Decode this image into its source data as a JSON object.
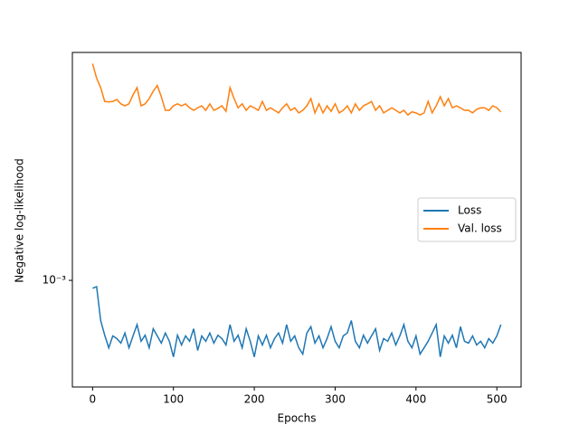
{
  "chart_data": {
    "type": "line",
    "xlabel": "Epochs",
    "ylabel": "Negative log-likelihood",
    "log_y": true,
    "legend": "center right",
    "xlim": [
      -25,
      530
    ],
    "xticks": [
      0,
      100,
      200,
      300,
      400,
      500
    ],
    "ylim": [
      0.0005,
      0.0044
    ],
    "yticks": [
      {
        "value": 0.001,
        "label": "10⁻³"
      }
    ],
    "x": [
      0,
      5,
      10,
      15,
      20,
      25,
      30,
      35,
      40,
      45,
      50,
      55,
      60,
      65,
      70,
      75,
      80,
      85,
      90,
      95,
      100,
      105,
      110,
      115,
      120,
      125,
      130,
      135,
      140,
      145,
      150,
      155,
      160,
      165,
      170,
      175,
      180,
      185,
      190,
      195,
      200,
      205,
      210,
      215,
      220,
      225,
      230,
      235,
      240,
      245,
      250,
      255,
      260,
      265,
      270,
      275,
      280,
      285,
      290,
      295,
      300,
      305,
      310,
      315,
      320,
      325,
      330,
      335,
      340,
      345,
      350,
      355,
      360,
      365,
      370,
      375,
      380,
      385,
      390,
      395,
      400,
      405,
      410,
      415,
      420,
      425,
      430,
      435,
      440,
      445,
      450,
      455,
      460,
      465,
      470,
      475,
      480,
      485,
      490,
      495,
      500,
      505
    ],
    "series": [
      {
        "name": "Loss",
        "color": "#1f77b4",
        "values": [
          0.00095,
          0.00096,
          0.00077,
          0.0007,
          0.000645,
          0.000697,
          0.000685,
          0.000665,
          0.00071,
          0.000645,
          0.000697,
          0.00075,
          0.000673,
          0.0007,
          0.000645,
          0.00073,
          0.000697,
          0.000665,
          0.00071,
          0.000673,
          0.000608,
          0.0007,
          0.000657,
          0.000697,
          0.000673,
          0.00073,
          0.000634,
          0.000697,
          0.000673,
          0.00071,
          0.000665,
          0.0007,
          0.000685,
          0.000657,
          0.00075,
          0.000673,
          0.0007,
          0.000645,
          0.00073,
          0.000673,
          0.000608,
          0.000697,
          0.000657,
          0.0007,
          0.000645,
          0.000685,
          0.00071,
          0.000665,
          0.00075,
          0.000673,
          0.000697,
          0.000645,
          0.000619,
          0.00071,
          0.00074,
          0.000665,
          0.000697,
          0.000645,
          0.000685,
          0.00074,
          0.000673,
          0.000645,
          0.000697,
          0.00071,
          0.00077,
          0.000673,
          0.000645,
          0.0007,
          0.000665,
          0.000697,
          0.00073,
          0.000634,
          0.000685,
          0.000673,
          0.00071,
          0.000657,
          0.000697,
          0.00075,
          0.000673,
          0.000645,
          0.000697,
          0.000619,
          0.000645,
          0.000673,
          0.00071,
          0.00075,
          0.000608,
          0.000697,
          0.000665,
          0.0007,
          0.000645,
          0.00074,
          0.000673,
          0.000665,
          0.000697,
          0.000657,
          0.000673,
          0.000645,
          0.000685,
          0.000665,
          0.000697,
          0.00075
        ]
      },
      {
        "name": "Val. loss",
        "color": "#ff7f0e",
        "values": [
          0.00409,
          0.00372,
          0.0035,
          0.0032,
          0.00319,
          0.0032,
          0.00324,
          0.00315,
          0.00311,
          0.00315,
          0.00334,
          0.0035,
          0.00311,
          0.00315,
          0.00326,
          0.00342,
          0.00355,
          0.0033,
          0.00302,
          0.00302,
          0.00311,
          0.00315,
          0.00311,
          0.00315,
          0.00307,
          0.00302,
          0.00307,
          0.00311,
          0.00302,
          0.00315,
          0.00302,
          0.00306,
          0.00311,
          0.003,
          0.0035,
          0.00326,
          0.00307,
          0.00315,
          0.00302,
          0.00311,
          0.00307,
          0.00302,
          0.0032,
          0.00302,
          0.00307,
          0.00302,
          0.00297,
          0.00307,
          0.00315,
          0.00302,
          0.00307,
          0.00297,
          0.00302,
          0.00311,
          0.00326,
          0.00297,
          0.00315,
          0.00297,
          0.00311,
          0.003,
          0.00315,
          0.00297,
          0.00302,
          0.00311,
          0.00297,
          0.00315,
          0.00302,
          0.00311,
          0.00315,
          0.0032,
          0.00302,
          0.00311,
          0.00297,
          0.00302,
          0.00307,
          0.00302,
          0.00297,
          0.00302,
          0.00293,
          0.00299,
          0.00297,
          0.00293,
          0.00297,
          0.0032,
          0.00297,
          0.00311,
          0.0033,
          0.00311,
          0.00326,
          0.00307,
          0.00311,
          0.00307,
          0.00302,
          0.00302,
          0.00297,
          0.00304,
          0.00307,
          0.00307,
          0.00302,
          0.00311,
          0.00307,
          0.00299
        ]
      }
    ]
  }
}
